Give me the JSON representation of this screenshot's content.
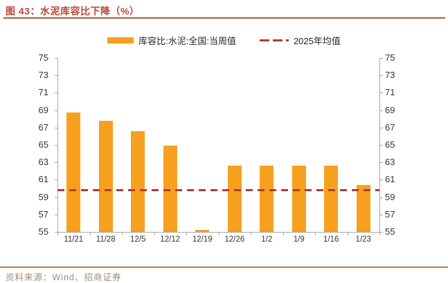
{
  "header": {
    "title": "图 43：水泥库容比下降（%）"
  },
  "footer": {
    "source": "资料来源：Wind、招商证券"
  },
  "colors": {
    "title_text": "#b8493a",
    "title_rule": "#b5543f",
    "bar_orange": "#f7a01e",
    "avg_line_red": "#b03a36",
    "axis_gray": "#a6a6a6",
    "tick_text": "#333333",
    "footer_rule": "#a87b63",
    "footer_text": "#9c8c7c"
  },
  "chart_data": {
    "type": "bar",
    "title": "水泥库容比下降（%）",
    "categories": [
      "11/21",
      "11/28",
      "12/5",
      "12/12",
      "12/19",
      "12/26",
      "1/2",
      "1/9",
      "1/16",
      "1/23"
    ],
    "series": [
      {
        "name": "库容比:水泥:全国:当周值",
        "type": "bar",
        "color": "#f7a01e",
        "values": [
          68.7,
          67.8,
          66.6,
          64.9,
          55.2,
          62.6,
          62.6,
          62.6,
          62.6,
          60.4
        ]
      },
      {
        "name": "2025年均值",
        "type": "dashed-line",
        "color": "#b03a36",
        "value": 59.8
      }
    ],
    "ylim": [
      55,
      75
    ],
    "yticks": [
      75,
      73,
      71,
      69,
      67,
      65,
      63,
      61,
      59,
      57,
      55
    ],
    "dual_axis": true,
    "grid": false,
    "legend_position": "top"
  }
}
